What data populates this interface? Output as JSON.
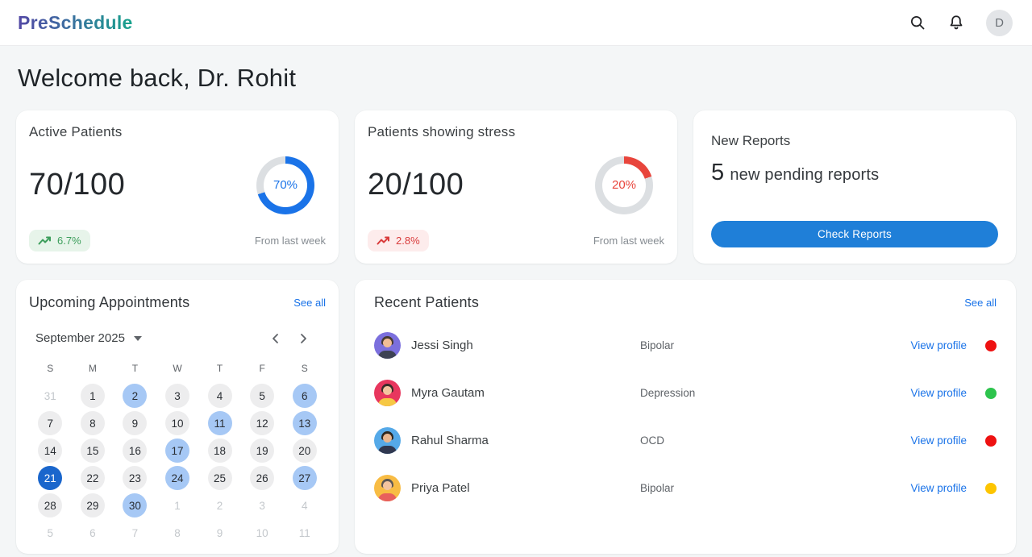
{
  "app": {
    "name": "PreSchedule"
  },
  "colors": {
    "logo_gradient_start": "#5348a5",
    "logo_gradient_end": "#17a38c",
    "accent_blue": "#1a73e8",
    "ring_track": "#dcdfe2",
    "button_blue": "#1f7fd8"
  },
  "header": {
    "avatar_initial": "D"
  },
  "welcome": {
    "title": "Welcome back, Dr. Rohit"
  },
  "stats": [
    {
      "title": "Active Patients",
      "value": "70/100",
      "percent": 70,
      "percent_label": "70%",
      "ring_color": "#1a73e8",
      "trend": "6.7%",
      "trend_color": "#3d9e5c",
      "trend_bg": "#e7f4ea",
      "footnote": "From last week"
    },
    {
      "title": "Patients showing stress",
      "value": "20/100",
      "percent": 20,
      "percent_label": "20%",
      "ring_color": "#e8453c",
      "trend": "2.8%",
      "trend_color": "#d93b3b",
      "trend_bg": "#fdecec",
      "footnote": "From last week"
    }
  ],
  "reports": {
    "title": "New Reports",
    "count": "5",
    "message": "new pending reports",
    "button_label": "Check Reports"
  },
  "appointments": {
    "title": "Upcoming Appointments",
    "see_all": "See all",
    "month_label": "September 2025",
    "weekdays": [
      "S",
      "M",
      "T",
      "W",
      "T",
      "F",
      "S"
    ],
    "days": [
      {
        "label": "31",
        "type": "other-month"
      },
      {
        "label": "1",
        "type": "default"
      },
      {
        "label": "2",
        "type": "highlighted"
      },
      {
        "label": "3",
        "type": "default"
      },
      {
        "label": "4",
        "type": "default"
      },
      {
        "label": "5",
        "type": "default"
      },
      {
        "label": "6",
        "type": "highlighted"
      },
      {
        "label": "7",
        "type": "default"
      },
      {
        "label": "8",
        "type": "default"
      },
      {
        "label": "9",
        "type": "default"
      },
      {
        "label": "10",
        "type": "default"
      },
      {
        "label": "11",
        "type": "highlighted"
      },
      {
        "label": "12",
        "type": "default"
      },
      {
        "label": "13",
        "type": "highlighted"
      },
      {
        "label": "14",
        "type": "default"
      },
      {
        "label": "15",
        "type": "default"
      },
      {
        "label": "16",
        "type": "default"
      },
      {
        "label": "17",
        "type": "highlighted"
      },
      {
        "label": "18",
        "type": "default"
      },
      {
        "label": "19",
        "type": "default"
      },
      {
        "label": "20",
        "type": "default"
      },
      {
        "label": "21",
        "type": "selected"
      },
      {
        "label": "22",
        "type": "default"
      },
      {
        "label": "23",
        "type": "default"
      },
      {
        "label": "24",
        "type": "highlighted"
      },
      {
        "label": "25",
        "type": "default"
      },
      {
        "label": "26",
        "type": "default"
      },
      {
        "label": "27",
        "type": "highlighted"
      },
      {
        "label": "28",
        "type": "default"
      },
      {
        "label": "29",
        "type": "default"
      },
      {
        "label": "30",
        "type": "highlighted"
      },
      {
        "label": "1",
        "type": "other-month"
      },
      {
        "label": "2",
        "type": "other-month"
      },
      {
        "label": "3",
        "type": "other-month"
      },
      {
        "label": "4",
        "type": "other-month"
      },
      {
        "label": "5",
        "type": "other-month"
      },
      {
        "label": "6",
        "type": "other-month"
      },
      {
        "label": "7",
        "type": "other-month"
      },
      {
        "label": "8",
        "type": "other-month"
      },
      {
        "label": "9",
        "type": "other-month"
      },
      {
        "label": "10",
        "type": "other-month"
      },
      {
        "label": "11",
        "type": "other-month"
      }
    ]
  },
  "patients": {
    "title": "Recent Patients",
    "see_all": "See all",
    "view_profile_label": "View profile",
    "rows": [
      {
        "name": "Jessi Singh",
        "condition": "Bipolar",
        "status_color": "#ee1111",
        "avatar": {
          "bg": "#7b6fdd",
          "hair": "#473a31",
          "skin": "#f2bd96",
          "shirt": "#3d4254"
        }
      },
      {
        "name": "Myra Gautam",
        "condition": "Depression",
        "status_color": "#2dc44d",
        "avatar": {
          "bg": "#e8375e",
          "hair": "#3a2d2a",
          "skin": "#f4c49f",
          "shirt": "#f6c844"
        }
      },
      {
        "name": "Rahul Sharma",
        "condition": "OCD",
        "status_color": "#ee1111",
        "avatar": {
          "bg": "#55a9e8",
          "hair": "#2d2720",
          "skin": "#e9b68f",
          "shirt": "#303850"
        }
      },
      {
        "name": "Priya Patel",
        "condition": "Bipolar",
        "status_color": "#fdc500",
        "avatar": {
          "bg": "#f8bc44",
          "hair": "#5c5755",
          "skin": "#f4c49f",
          "shirt": "#e85f5c"
        }
      }
    ]
  }
}
